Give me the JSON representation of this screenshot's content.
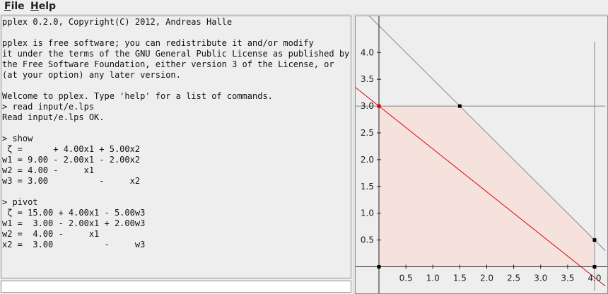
{
  "menu": [
    {
      "label": "File",
      "mnemonic": "F",
      "rest": "ile"
    },
    {
      "label": "Help",
      "mnemonic": "H",
      "rest": "elp"
    }
  ],
  "console": {
    "lines": [
      "pplex 0.2.0, Copyright(C) 2012, Andreas Halle",
      "",
      "pplex is free software; you can redistribute it and/or modify",
      "it under the terms of the GNU General Public License as published by",
      "the Free Software Foundation, either version 3 of the License, or",
      "(at your option) any later version.",
      "",
      "Welcome to pplex. Type 'help' for a list of commands.",
      "> read input/e.lps",
      "Read input/e.lps OK.",
      "",
      "> show",
      " ζ =      + 4.00x1 + 5.00x2",
      "w1 = 9.00 - 2.00x1 - 2.00x2",
      "w2 = 4.00 -     x1",
      "w3 = 3.00          -     x2",
      "",
      "> pivot",
      " ζ = 15.00 + 4.00x1 - 5.00w3",
      "w1 =  3.00 - 2.00x1 + 2.00w3",
      "w2 =  4.00 -     x1",
      "x2 =  3.00          -     w3"
    ],
    "input_value": ""
  },
  "chart_data": {
    "type": "line",
    "title": "",
    "xlabel": "",
    "ylabel": "",
    "xlim": [
      -0.45,
      4.2
    ],
    "ylim": [
      -0.45,
      4.2
    ],
    "x_ticks": [
      0.5,
      1.0,
      1.5,
      2.0,
      2.5,
      3.0,
      3.5,
      4.0
    ],
    "x_tick_labels": [
      "0.5",
      "1.0",
      "1.5",
      "2.0",
      "2.5",
      "3.0",
      "3.5",
      "4.0"
    ],
    "y_ticks": [
      0.5,
      1.0,
      1.5,
      2.0,
      2.5,
      3.0,
      3.5,
      4.0
    ],
    "y_tick_labels": [
      "0.5",
      "1.0",
      "1.5",
      "2.0",
      "2.5",
      "3.0",
      "3.5",
      "4.0"
    ],
    "grid": false,
    "feasible_region": [
      [
        0,
        0
      ],
      [
        0,
        3
      ],
      [
        1.5,
        3
      ],
      [
        4,
        0.5
      ],
      [
        4,
        0
      ]
    ],
    "vertices": [
      [
        0,
        0
      ],
      [
        1.5,
        3
      ],
      [
        4,
        0.5
      ],
      [
        4,
        0
      ]
    ],
    "current_vertex": [
      0,
      3
    ],
    "constraint_lines": [
      {
        "a": 2,
        "b": 2,
        "c": 9
      },
      {
        "a": 1,
        "b": 0,
        "c": 4
      },
      {
        "a": 0,
        "b": 1,
        "c": 3
      }
    ],
    "objective_line": {
      "a": 4,
      "b": 5,
      "c": 15
    },
    "colors": {
      "region_fill": "#f6e2dd",
      "constraint": "#888888",
      "objective": "#dd0000",
      "vertex": "#000000",
      "current_vertex": "#dd0000",
      "axis": "#222222"
    }
  }
}
